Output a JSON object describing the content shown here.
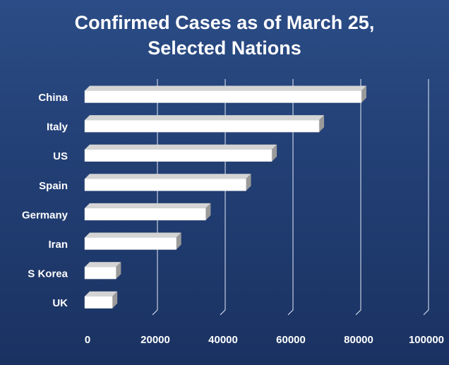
{
  "chart_data": {
    "type": "bar",
    "orientation": "horizontal",
    "title_lines": [
      "Confirmed Cases as of March 25,",
      "Selected Nations"
    ],
    "categories": [
      "China",
      "Italy",
      "US",
      "Spain",
      "Germany",
      "Iran",
      "S Korea",
      "UK"
    ],
    "values": [
      81661,
      69176,
      55225,
      47610,
      35714,
      27017,
      9241,
      8164
    ],
    "xlim": [
      0,
      100000
    ],
    "x_ticks": [
      0,
      20000,
      40000,
      60000,
      80000,
      100000
    ],
    "x_tick_labels": [
      "0",
      "20000",
      "40000",
      "60000",
      "80000",
      "100000"
    ],
    "xlabel": "",
    "ylabel": "",
    "grid": true,
    "legend": "none",
    "style": "3d-bars",
    "colors": {
      "bar_face": "#ffffff",
      "bar_side": "#9a9a9a",
      "bar_top": "#d4d4d4",
      "grid": "#e6ecf5",
      "text": "#ffffff",
      "background_top": "#2b4c86",
      "background_bottom": "#1a3262"
    }
  }
}
